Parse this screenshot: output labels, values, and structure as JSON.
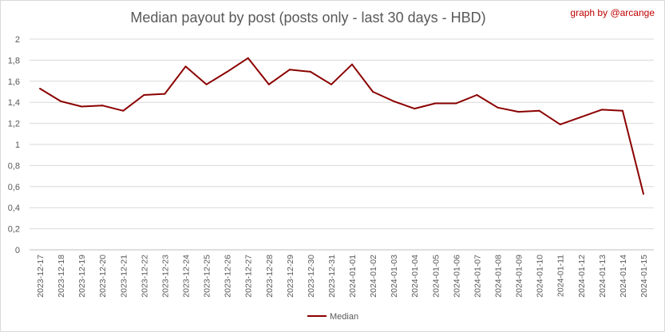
{
  "chart_data": {
    "type": "line",
    "title": "Median payout by post (posts only - last 30 days - HBD)",
    "credit": "graph by @arcange",
    "xlabel": "",
    "ylabel": "",
    "ylim": [
      0,
      2
    ],
    "yticks": [
      "0",
      "0,2",
      "0,4",
      "0,6",
      "0,8",
      "1",
      "1,2",
      "1,4",
      "1,6",
      "1,8",
      "2"
    ],
    "grid": true,
    "legend_position": "bottom",
    "categories": [
      "2023-12-17",
      "2023-12-18",
      "2023-12-19",
      "2023-12-20",
      "2023-12-21",
      "2023-12-22",
      "2023-12-23",
      "2023-12-24",
      "2023-12-25",
      "2023-12-26",
      "2023-12-27",
      "2023-12-28",
      "2023-12-29",
      "2023-12-30",
      "2023-12-31",
      "2024-01-01",
      "2024-01-02",
      "2024-01-03",
      "2024-01-04",
      "2024-01-05",
      "2024-01-06",
      "2024-01-07",
      "2024-01-08",
      "2024-01-09",
      "2024-01-10",
      "2024-01-11",
      "2024-01-12",
      "2024-01-13",
      "2024-01-14",
      "2024-01-15"
    ],
    "series": [
      {
        "name": "Median",
        "color": "#8b0000",
        "values": [
          1.53,
          1.41,
          1.36,
          1.37,
          1.32,
          1.47,
          1.48,
          1.74,
          1.57,
          1.69,
          1.82,
          1.57,
          1.71,
          1.69,
          1.57,
          1.76,
          1.5,
          1.41,
          1.34,
          1.39,
          1.39,
          1.47,
          1.35,
          1.31,
          1.32,
          1.19,
          1.26,
          1.33,
          1.32,
          0.53
        ]
      }
    ]
  }
}
